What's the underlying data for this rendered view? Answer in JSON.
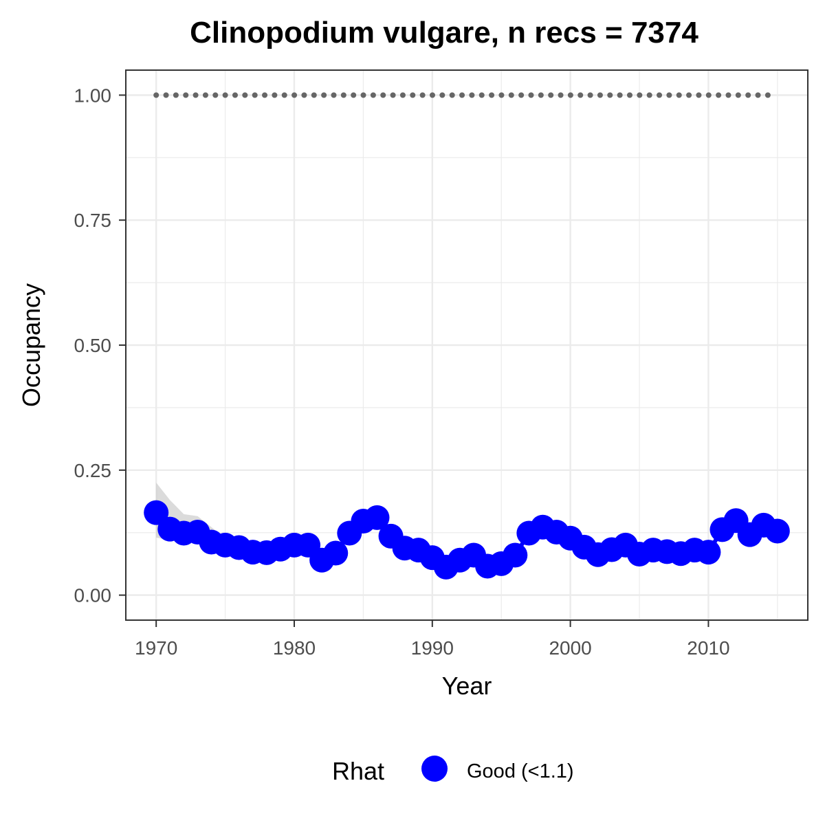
{
  "chart_data": {
    "type": "line",
    "title": "Clinopodium vulgare, n recs = 7374",
    "xlabel": "Year",
    "ylabel": "Occupancy",
    "xlim": [
      1967.8,
      2017.2
    ],
    "ylim": [
      -0.05,
      1.05
    ],
    "x_ticks": [
      1970,
      1980,
      1990,
      2000,
      2010
    ],
    "y_ticks": [
      0.0,
      0.25,
      0.5,
      0.75,
      1.0
    ],
    "x_tick_labels": [
      "1970",
      "1980",
      "1990",
      "2000",
      "2010"
    ],
    "y_tick_labels": [
      "0.00",
      "0.25",
      "0.50",
      "0.75",
      "1.00"
    ],
    "grid": true,
    "legend": {
      "title": "Rhat",
      "position": "bottom",
      "entries": [
        {
          "label": "Good (<1.1)",
          "color": "#0000ff"
        }
      ]
    },
    "x": [
      1970,
      1971,
      1972,
      1973,
      1974,
      1975,
      1976,
      1977,
      1978,
      1979,
      1980,
      1981,
      1982,
      1983,
      1984,
      1985,
      1986,
      1987,
      1988,
      1989,
      1990,
      1991,
      1992,
      1993,
      1994,
      1995,
      1996,
      1997,
      1998,
      1999,
      2000,
      2001,
      2002,
      2003,
      2004,
      2005,
      2006,
      2007,
      2008,
      2009,
      2010,
      2011,
      2012,
      2013,
      2014,
      2015
    ],
    "series": [
      {
        "name": "Good (<1.1)",
        "color": "#0000ff",
        "values": [
          0.165,
          0.132,
          0.124,
          0.126,
          0.106,
          0.1,
          0.095,
          0.086,
          0.085,
          0.092,
          0.1,
          0.1,
          0.07,
          0.084,
          0.124,
          0.148,
          0.155,
          0.118,
          0.094,
          0.09,
          0.075,
          0.056,
          0.07,
          0.08,
          0.058,
          0.063,
          0.08,
          0.124,
          0.136,
          0.126,
          0.114,
          0.096,
          0.081,
          0.091,
          0.1,
          0.082,
          0.09,
          0.087,
          0.083,
          0.09,
          0.086,
          0.131,
          0.149,
          0.121,
          0.14,
          0.128
        ],
        "ci_lower": [
          0.115,
          0.11,
          0.11,
          0.11,
          0.098,
          0.085,
          0.08,
          0.078,
          0.078,
          0.084,
          0.092,
          0.093,
          0.064,
          0.077,
          0.116,
          0.138,
          0.145,
          0.11,
          0.087,
          0.083,
          0.069,
          0.051,
          0.064,
          0.074,
          0.053,
          0.058,
          0.074,
          0.116,
          0.128,
          0.118,
          0.107,
          0.089,
          0.075,
          0.084,
          0.093,
          0.076,
          0.083,
          0.08,
          0.076,
          0.083,
          0.079,
          0.122,
          0.139,
          0.112,
          0.13,
          0.118
        ],
        "ci_upper": [
          0.225,
          0.19,
          0.162,
          0.158,
          0.136,
          0.114,
          0.11,
          0.098,
          0.096,
          0.101,
          0.109,
          0.108,
          0.077,
          0.092,
          0.133,
          0.158,
          0.165,
          0.127,
          0.102,
          0.098,
          0.082,
          0.062,
          0.077,
          0.087,
          0.064,
          0.069,
          0.087,
          0.133,
          0.145,
          0.135,
          0.122,
          0.104,
          0.088,
          0.099,
          0.108,
          0.089,
          0.098,
          0.095,
          0.091,
          0.098,
          0.094,
          0.141,
          0.159,
          0.131,
          0.15,
          0.138
        ]
      }
    ],
    "reference_line": {
      "y": 1.0,
      "color": "#666666",
      "style": "dotted"
    }
  }
}
